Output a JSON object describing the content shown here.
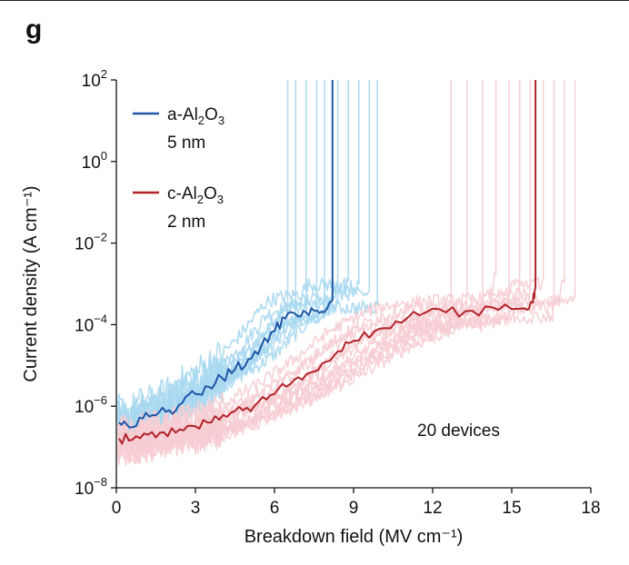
{
  "panel_letter": "g",
  "chart_data": {
    "type": "line",
    "xlabel": "Breakdown field (MV cm⁻¹)",
    "ylabel": "Current density (A cm⁻¹)",
    "xlim": [
      0,
      18
    ],
    "ylim": [
      1e-08,
      100
    ],
    "y_scale": "log",
    "x_ticks": [
      0,
      3,
      6,
      9,
      12,
      15,
      18
    ],
    "y_ticks": [
      {
        "value": 1e-08,
        "base": "10",
        "exp": "−8"
      },
      {
        "value": 1e-06,
        "base": "10",
        "exp": "−6"
      },
      {
        "value": 0.0001,
        "base": "10",
        "exp": "−4"
      },
      {
        "value": 0.01,
        "base": "10",
        "exp": "−2"
      },
      {
        "value": 1,
        "base": "10",
        "exp": "0"
      },
      {
        "value": 100,
        "base": "10",
        "exp": "2"
      }
    ],
    "grid": false,
    "legend_position": "top-left",
    "annotation": "20 devices",
    "colors": {
      "a_main": "#1f56a8",
      "a_faint": "#a9d8f0",
      "c_main": "#b22228",
      "c_faint": "#f6cdd3"
    },
    "series": [
      {
        "name": "a-Al2O3 5 nm",
        "legend_main": "a-Al",
        "legend_sub1": "2",
        "legend_mid": "O",
        "legend_sub2": "3",
        "legend_line2": "5 nm",
        "breakdown_field": 8.2,
        "x": [
          0.1,
          0.5,
          1.0,
          1.5,
          2.0,
          2.5,
          3.0,
          3.5,
          4.0,
          4.5,
          5.0,
          5.5,
          6.0,
          6.4,
          6.8,
          7.2,
          7.6,
          8.0,
          8.2,
          8.2
        ],
        "y": [
          4e-07,
          3e-07,
          5e-07,
          6e-07,
          8e-07,
          1.2e-06,
          2e-06,
          3e-06,
          5e-06,
          8e-06,
          1.4e-05,
          3e-05,
          7e-05,
          0.00014,
          0.00018,
          0.0002,
          0.00022,
          0.00025,
          0.0004,
          100
        ]
      },
      {
        "name": "c-Al2O3 2 nm",
        "legend_main": "c-Al",
        "legend_sub1": "2",
        "legend_mid": "O",
        "legend_sub2": "3",
        "legend_line2": "2 nm",
        "breakdown_field": 15.9,
        "x": [
          0.1,
          0.6,
          1.2,
          1.8,
          2.4,
          3.0,
          3.6,
          4.2,
          4.8,
          5.4,
          6.0,
          6.6,
          7.2,
          7.8,
          8.4,
          9.0,
          9.8,
          10.6,
          11.5,
          12.5,
          13.5,
          14.5,
          15.5,
          15.8,
          15.9,
          15.9
        ],
        "y": [
          1.6e-07,
          1.5e-07,
          2e-07,
          2.3e-07,
          2.7e-07,
          3.2e-07,
          4e-07,
          5.5e-07,
          8e-07,
          1.3e-06,
          2e-06,
          3.5e-06,
          6e-06,
          1.1e-05,
          2.2e-05,
          4e-05,
          7e-05,
          0.00012,
          0.00017,
          0.0002,
          0.00022,
          0.00023,
          0.00025,
          0.00035,
          0.0008,
          100
        ]
      }
    ],
    "faint_breakdowns_a": [
      6.5,
      6.8,
      7.2,
      7.6,
      7.9,
      8.4,
      8.8,
      9.2,
      9.6,
      9.9
    ],
    "faint_breakdowns_c": [
      12.7,
      13.3,
      13.9,
      14.4,
      14.9,
      15.3,
      15.7,
      16.2,
      16.6,
      17.0,
      17.4
    ]
  }
}
